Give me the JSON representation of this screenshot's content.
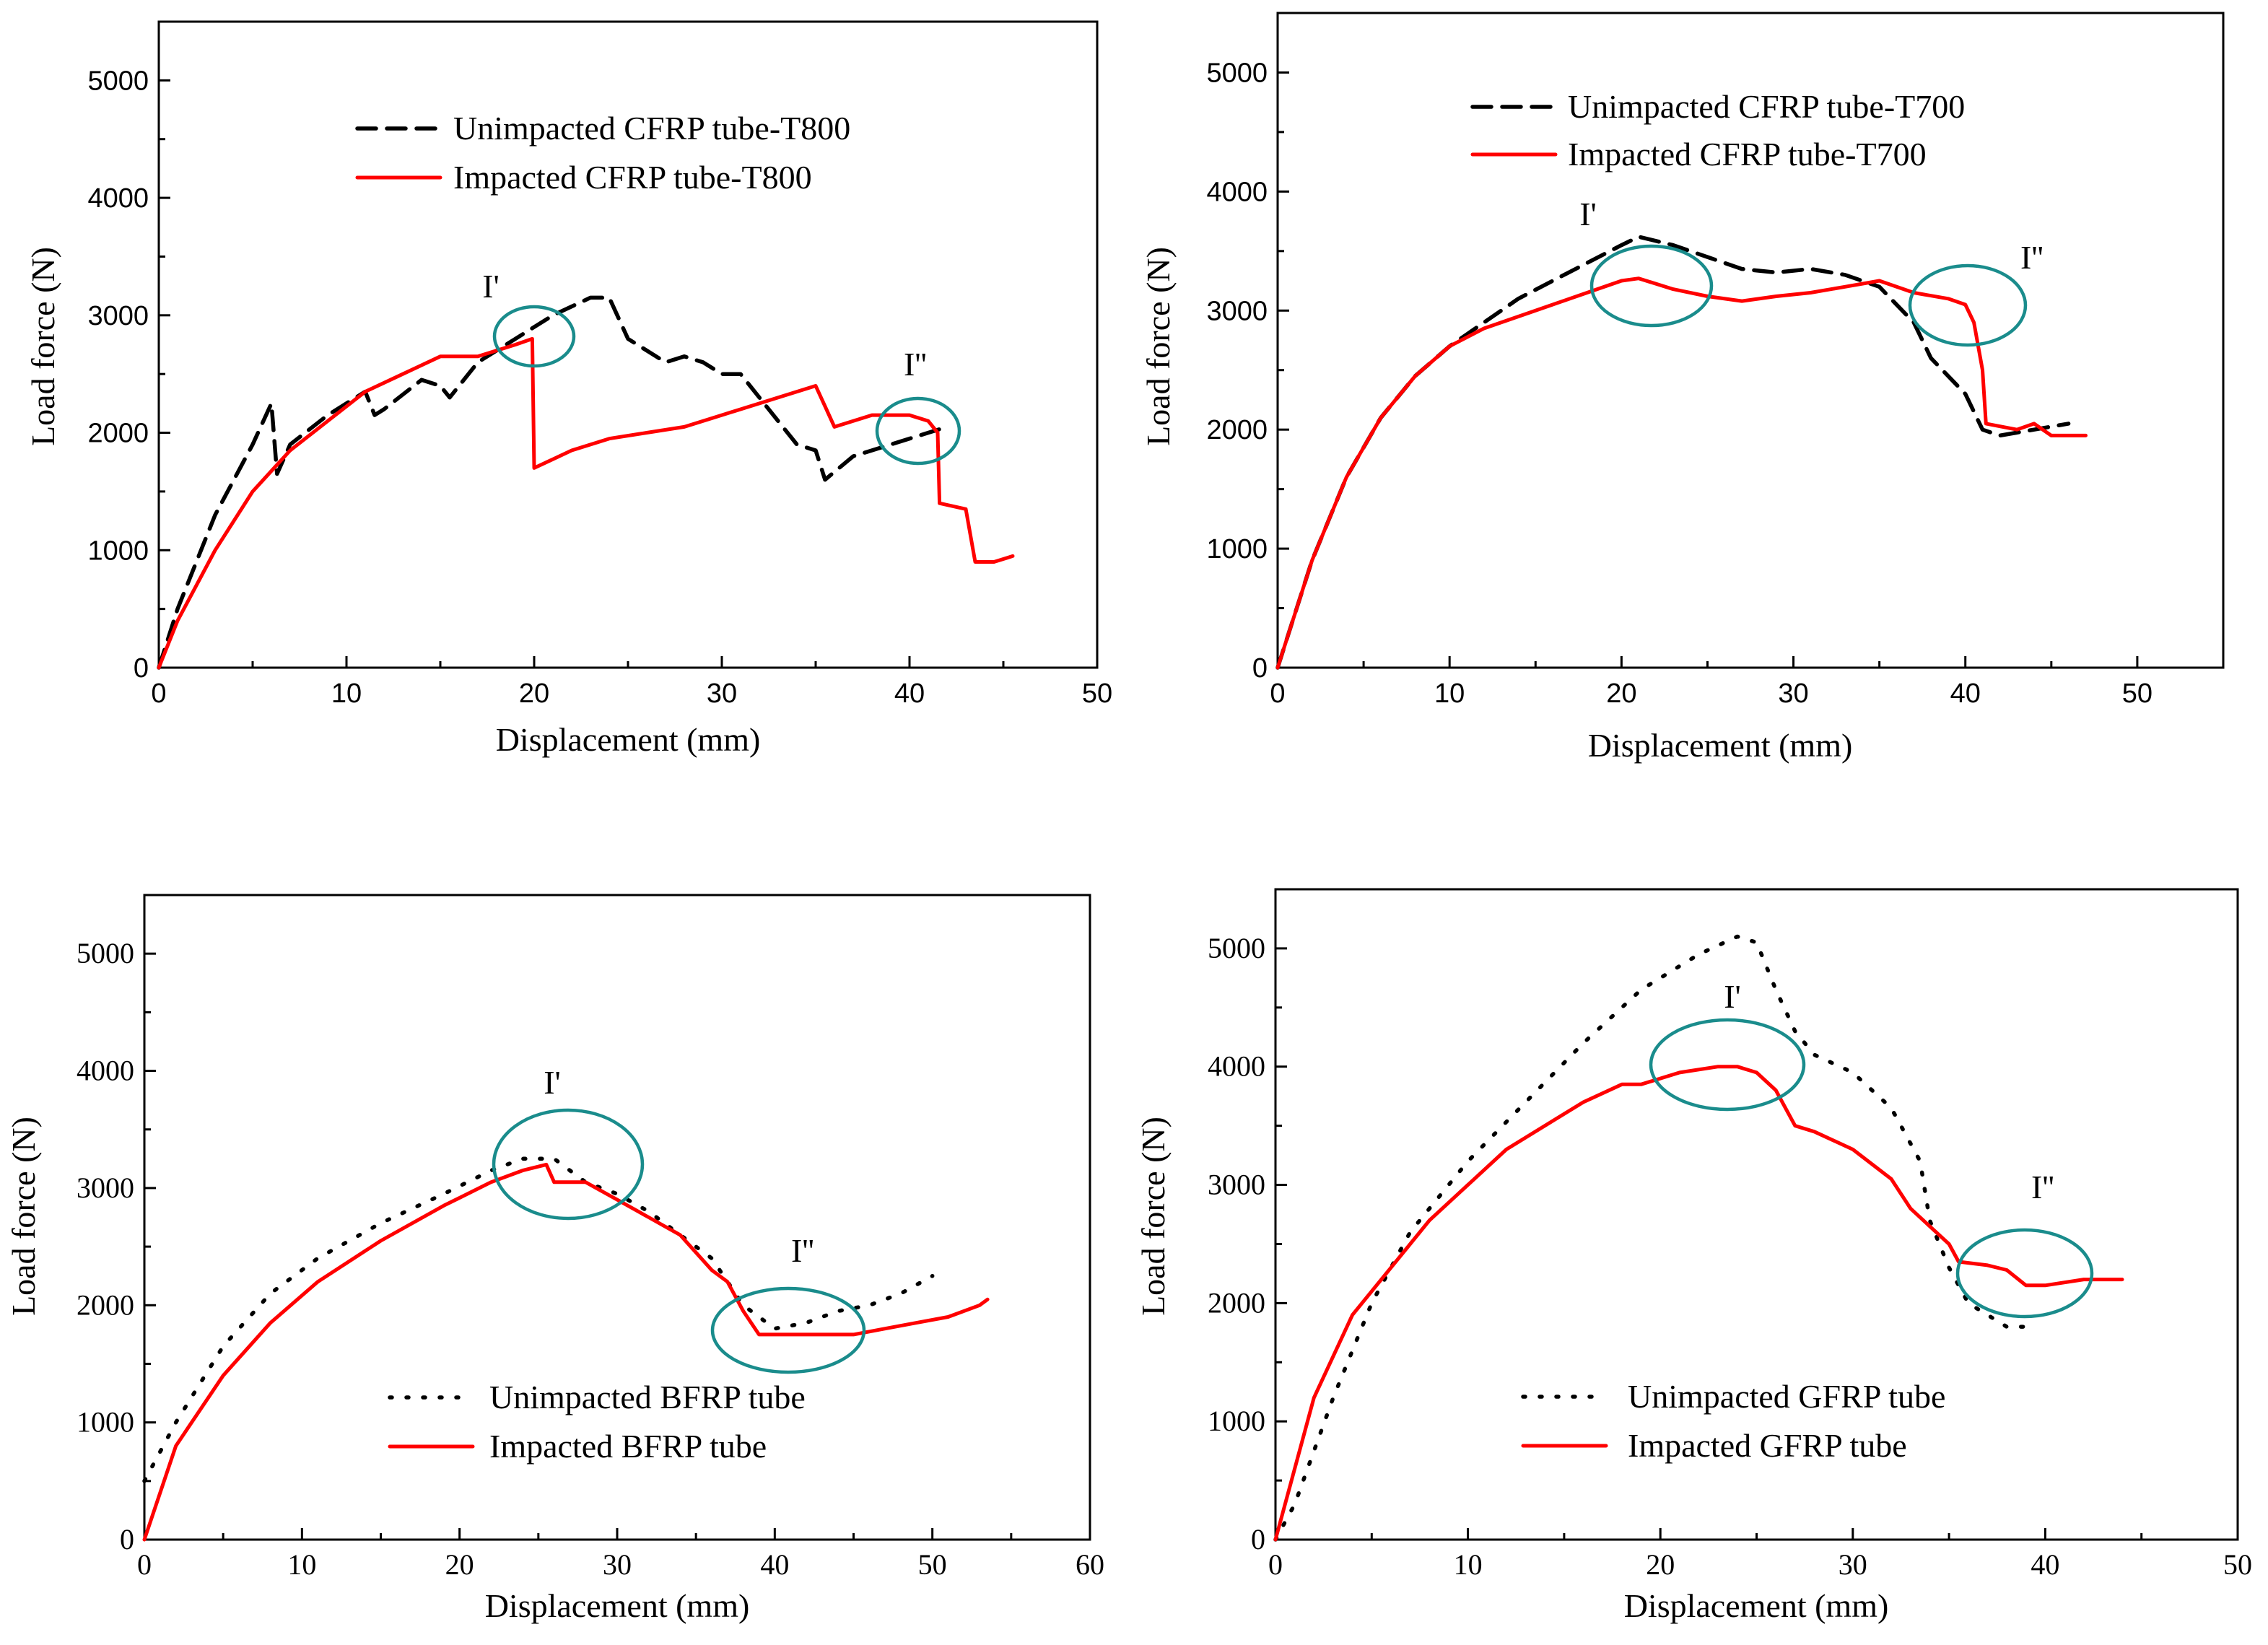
{
  "colors": {
    "unimpacted": "#000000",
    "impacted": "#ff0000",
    "annotation": "#1a8c8c"
  },
  "chart_data": [
    {
      "type": "line",
      "xlabel": "Displacement (mm)",
      "ylabel": "Load force (N)",
      "xlim": [
        0,
        50
      ],
      "ylim": [
        0,
        5500
      ],
      "xticks": [
        0,
        10,
        20,
        30,
        40,
        50
      ],
      "yticks": [
        0,
        1000,
        2000,
        3000,
        4000,
        5000
      ],
      "legend_position": "top-center",
      "series": [
        {
          "name": "Unimpacted CFRP tube-T800",
          "style": "dash",
          "color": "#000000",
          "points": [
            [
              0,
              0
            ],
            [
              1,
              500
            ],
            [
              3,
              1300
            ],
            [
              5,
              1900
            ],
            [
              6,
              2250
            ],
            [
              6.3,
              1650
            ],
            [
              7,
              1900
            ],
            [
              9,
              2150
            ],
            [
              11,
              2350
            ],
            [
              11.5,
              2150
            ],
            [
              12,
              2200
            ],
            [
              14,
              2450
            ],
            [
              15,
              2400
            ],
            [
              15.5,
              2300
            ],
            [
              17,
              2600
            ],
            [
              19,
              2800
            ],
            [
              21,
              3000
            ],
            [
              23,
              3150
            ],
            [
              24,
              3150
            ],
            [
              25,
              2800
            ],
            [
              27,
              2600
            ],
            [
              28,
              2650
            ],
            [
              29,
              2600
            ],
            [
              30,
              2500
            ],
            [
              31,
              2500
            ],
            [
              33,
              2100
            ],
            [
              34,
              1900
            ],
            [
              35,
              1850
            ],
            [
              35.5,
              1600
            ],
            [
              37,
              1800
            ],
            [
              39,
              1900
            ],
            [
              41,
              2000
            ],
            [
              42,
              2050
            ]
          ]
        },
        {
          "name": "Impacted CFRP tube-T800",
          "style": "solid",
          "color": "#ff0000",
          "points": [
            [
              0,
              0
            ],
            [
              1,
              400
            ],
            [
              3,
              1000
            ],
            [
              5,
              1500
            ],
            [
              7,
              1850
            ],
            [
              9,
              2100
            ],
            [
              11,
              2350
            ],
            [
              13,
              2500
            ],
            [
              15,
              2650
            ],
            [
              17,
              2650
            ],
            [
              19,
              2750
            ],
            [
              19.9,
              2800
            ],
            [
              20,
              1700
            ],
            [
              22,
              1850
            ],
            [
              24,
              1950
            ],
            [
              26,
              2000
            ],
            [
              28,
              2050
            ],
            [
              30,
              2150
            ],
            [
              32,
              2250
            ],
            [
              34,
              2350
            ],
            [
              35,
              2400
            ],
            [
              36,
              2050
            ],
            [
              38,
              2150
            ],
            [
              40,
              2150
            ],
            [
              41,
              2100
            ],
            [
              41.5,
              2000
            ],
            [
              41.6,
              1400
            ],
            [
              43,
              1350
            ],
            [
              43.5,
              900
            ],
            [
              44.5,
              900
            ],
            [
              45.5,
              950
            ]
          ]
        }
      ],
      "annotations": [
        {
          "label": "I'",
          "x": 20,
          "y": 2850
        },
        {
          "label": "I''",
          "x": 40.5,
          "y": 2000
        }
      ]
    },
    {
      "type": "line",
      "xlabel": "Displacement (mm)",
      "ylabel": "Load force (N)",
      "xlim": [
        0,
        55
      ],
      "ylim": [
        0,
        5500
      ],
      "xticks": [
        0,
        10,
        20,
        30,
        40,
        50
      ],
      "yticks": [
        0,
        1000,
        2000,
        3000,
        4000,
        5000
      ],
      "legend_position": "top-center",
      "series": [
        {
          "name": "Unimpacted CFRP tube-T700",
          "style": "dash",
          "color": "#000000",
          "points": [
            [
              0,
              0
            ],
            [
              2,
              900
            ],
            [
              4,
              1600
            ],
            [
              6,
              2100
            ],
            [
              8,
              2450
            ],
            [
              10,
              2700
            ],
            [
              12,
              2900
            ],
            [
              14,
              3100
            ],
            [
              16,
              3250
            ],
            [
              18,
              3400
            ],
            [
              20,
              3550
            ],
            [
              21,
              3620
            ],
            [
              23,
              3550
            ],
            [
              25,
              3450
            ],
            [
              27,
              3350
            ],
            [
              29,
              3320
            ],
            [
              31,
              3350
            ],
            [
              33,
              3300
            ],
            [
              35,
              3200
            ],
            [
              37,
              2900
            ],
            [
              38,
              2600
            ],
            [
              40,
              2300
            ],
            [
              41,
              2000
            ],
            [
              42,
              1950
            ],
            [
              44,
              2000
            ],
            [
              46,
              2050
            ]
          ]
        },
        {
          "name": "Impacted CFRP tube-T700",
          "style": "solid",
          "color": "#ff0000",
          "points": [
            [
              0,
              0
            ],
            [
              2,
              900
            ],
            [
              4,
              1600
            ],
            [
              6,
              2100
            ],
            [
              8,
              2450
            ],
            [
              10,
              2700
            ],
            [
              12,
              2850
            ],
            [
              14,
              2950
            ],
            [
              16,
              3050
            ],
            [
              18,
              3150
            ],
            [
              20,
              3250
            ],
            [
              21,
              3270
            ],
            [
              23,
              3180
            ],
            [
              25,
              3120
            ],
            [
              27,
              3080
            ],
            [
              29,
              3120
            ],
            [
              31,
              3150
            ],
            [
              33,
              3200
            ],
            [
              35,
              3250
            ],
            [
              37,
              3150
            ],
            [
              39,
              3100
            ],
            [
              40,
              3050
            ],
            [
              40.5,
              2900
            ],
            [
              41,
              2500
            ],
            [
              41.2,
              2050
            ],
            [
              43,
              2000
            ],
            [
              44,
              2050
            ],
            [
              45,
              1950
            ],
            [
              46,
              1950
            ],
            [
              47,
              1950
            ]
          ]
        }
      ],
      "annotations": [
        {
          "label": "I'",
          "x": 22,
          "y": 3200
        },
        {
          "label": "I''",
          "x": 39.5,
          "y": 3050
        }
      ]
    },
    {
      "type": "line",
      "xlabel": "Displacement (mm)",
      "ylabel": "Load force (N)",
      "xlim": [
        0,
        60
      ],
      "ylim": [
        0,
        5500
      ],
      "xticks": [
        0,
        10,
        20,
        30,
        40,
        50,
        60
      ],
      "yticks": [
        0,
        1000,
        2000,
        3000,
        4000,
        5000
      ],
      "legend_position": "bottom-center",
      "series": [
        {
          "name": "Unimpacted BFRP tube",
          "style": "dot",
          "color": "#000000",
          "points": [
            [
              0,
              500
            ],
            [
              2,
              1000
            ],
            [
              5,
              1650
            ],
            [
              8,
              2100
            ],
            [
              11,
              2400
            ],
            [
              15,
              2700
            ],
            [
              19,
              2950
            ],
            [
              22,
              3150
            ],
            [
              24,
              3250
            ],
            [
              26,
              3250
            ],
            [
              28,
              3050
            ],
            [
              30,
              2950
            ],
            [
              32,
              2800
            ],
            [
              34,
              2600
            ],
            [
              36,
              2400
            ],
            [
              38,
              2000
            ],
            [
              40,
              1800
            ],
            [
              42,
              1850
            ],
            [
              44,
              1950
            ],
            [
              46,
              2000
            ],
            [
              48,
              2100
            ],
            [
              50,
              2250
            ]
          ]
        },
        {
          "name": "Impacted BFRP tube",
          "style": "solid",
          "color": "#ff0000",
          "points": [
            [
              0,
              0
            ],
            [
              2,
              800
            ],
            [
              5,
              1400
            ],
            [
              8,
              1850
            ],
            [
              11,
              2200
            ],
            [
              15,
              2550
            ],
            [
              19,
              2850
            ],
            [
              22,
              3050
            ],
            [
              24,
              3150
            ],
            [
              25.5,
              3200
            ],
            [
              26,
              3050
            ],
            [
              28,
              3050
            ],
            [
              30,
              2900
            ],
            [
              32,
              2750
            ],
            [
              34,
              2600
            ],
            [
              36,
              2300
            ],
            [
              37,
              2200
            ],
            [
              38,
              1950
            ],
            [
              39,
              1750
            ],
            [
              41,
              1750
            ],
            [
              43,
              1750
            ],
            [
              45,
              1750
            ],
            [
              47,
              1800
            ],
            [
              49,
              1850
            ],
            [
              51,
              1900
            ],
            [
              53,
              2000
            ],
            [
              53.5,
              2050
            ]
          ]
        }
      ],
      "annotations": [
        {
          "label": "I'",
          "x": 25.5,
          "y": 3150
        },
        {
          "label": "I''",
          "x": 41,
          "y": 1750
        }
      ]
    },
    {
      "type": "line",
      "xlabel": "Displacement (mm)",
      "ylabel": "Load force (N)",
      "xlim": [
        0,
        50
      ],
      "ylim": [
        0,
        5500
      ],
      "xticks": [
        0,
        10,
        20,
        30,
        40,
        50
      ],
      "yticks": [
        0,
        1000,
        2000,
        3000,
        4000,
        5000
      ],
      "legend_position": "bottom-center",
      "series": [
        {
          "name": "Unimpacted GFRP tube",
          "style": "dot",
          "color": "#000000",
          "points": [
            [
              0,
              0
            ],
            [
              1,
              300
            ],
            [
              3,
              1200
            ],
            [
              5,
              2000
            ],
            [
              7,
              2600
            ],
            [
              10,
              3200
            ],
            [
              13,
              3700
            ],
            [
              16,
              4200
            ],
            [
              19,
              4650
            ],
            [
              22,
              4950
            ],
            [
              24,
              5100
            ],
            [
              25,
              5050
            ],
            [
              26,
              4650
            ],
            [
              27,
              4300
            ],
            [
              28,
              4100
            ],
            [
              30,
              3950
            ],
            [
              32,
              3650
            ],
            [
              33.5,
              3200
            ],
            [
              34,
              2700
            ],
            [
              35,
              2300
            ],
            [
              36,
              2000
            ],
            [
              37,
              1900
            ],
            [
              38,
              1800
            ],
            [
              39,
              1800
            ]
          ]
        },
        {
          "name": "Impacted GFRP tube",
          "style": "solid",
          "color": "#ff0000",
          "points": [
            [
              0,
              0
            ],
            [
              2,
              1200
            ],
            [
              4,
              1900
            ],
            [
              6,
              2300
            ],
            [
              7,
              2500
            ],
            [
              8,
              2700
            ],
            [
              10,
              3000
            ],
            [
              12,
              3300
            ],
            [
              14,
              3500
            ],
            [
              16,
              3700
            ],
            [
              18,
              3850
            ],
            [
              19,
              3850
            ],
            [
              21,
              3950
            ],
            [
              23,
              4000
            ],
            [
              24,
              4000
            ],
            [
              25,
              3950
            ],
            [
              26,
              3800
            ],
            [
              27,
              3500
            ],
            [
              28,
              3450
            ],
            [
              30,
              3300
            ],
            [
              32,
              3050
            ],
            [
              33,
              2800
            ],
            [
              34,
              2650
            ],
            [
              35,
              2500
            ],
            [
              35.5,
              2350
            ],
            [
              37,
              2320
            ],
            [
              38,
              2280
            ],
            [
              39,
              2150
            ],
            [
              40,
              2150
            ],
            [
              42,
              2200
            ],
            [
              44,
              2200
            ]
          ]
        }
      ],
      "annotations": [
        {
          "label": "I'",
          "x": 23.5,
          "y": 4000
        },
        {
          "label": "I''",
          "x": 40.5,
          "y": 2200
        }
      ]
    }
  ]
}
